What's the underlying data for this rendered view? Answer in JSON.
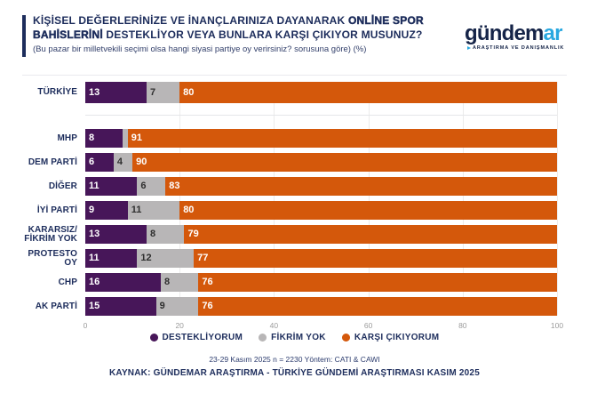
{
  "header": {
    "title_part1": "KİŞİSEL DEĞERLERİNİZE VE İNANÇLARINIZA DAYANARAK",
    "title_part2_bold": "ONLİNE SPOR BAHİSLERİNİ",
    "title_part3": "DESTEKLİYOR VEYA BUNLARA KARŞI ÇIKIYOR MUSUNUZ?",
    "subtitle": "(Bu pazar bir milletvekili seçimi olsa hangi siyasi partiye oy verirsiniz? sorusuna göre) (%)",
    "accent_color": "#1d2d5c"
  },
  "logo": {
    "text_main": "gündem",
    "text_accent": "ar",
    "tagline": "ARAŞTIRMA VE DANIŞMANLIK",
    "main_color": "#152448",
    "accent_color": "#29a8e0"
  },
  "chart_data": {
    "type": "bar",
    "orientation": "horizontal",
    "stacked": true,
    "title": "KİŞİSEL DEĞERLERİNİZE VE İNANÇLARINIZA DAYANARAK ONLİNE SPOR BAHİSLERİNİ DESTEKLİYOR VEYA BUNLARA KARŞI ÇIKIYOR MUSUNUZ?",
    "subtitle": "(Bu pazar bir milletvekili seçimi olsa hangi siyasi partiye oy verirsiniz? sorusuna göre) (%)",
    "unit": "%",
    "categories": [
      "TÜRKİYE",
      "MHP",
      "DEM PARTİ",
      "DİĞER",
      "İYİ PARTİ",
      "KARARSIZ/\nFİKRİM YOK",
      "PROTESTO OY",
      "CHP",
      "AK PARTİ"
    ],
    "series": [
      {
        "name": "DESTEKLİYORUM",
        "color": "#471659",
        "label_color": "#ffffff",
        "values": [
          13,
          8,
          6,
          11,
          9,
          13,
          11,
          16,
          15
        ]
      },
      {
        "name": "FİKRİM YOK",
        "color": "#b8b6b7",
        "label_color": "#2f2f2f",
        "values": [
          7,
          1,
          4,
          6,
          11,
          8,
          12,
          8,
          9
        ]
      },
      {
        "name": "KARŞI ÇIKIYORUM",
        "color": "#d4580b",
        "label_color": "#ffffff",
        "values": [
          80,
          91,
          90,
          83,
          80,
          79,
          77,
          76,
          76
        ]
      }
    ],
    "min_label_value": 2,
    "xlim": [
      0,
      100
    ],
    "x_ticks": [
      0,
      20,
      40,
      60,
      80,
      100
    ],
    "grid": true,
    "legend_position": "bottom",
    "highlight_row": "TÜRKİYE"
  },
  "legend": {
    "items": [
      {
        "label": "DESTEKLİYORUM",
        "color": "#471659"
      },
      {
        "label": "FİKRİM YOK",
        "color": "#b8b6b7"
      },
      {
        "label": "KARŞI ÇIKIYORUM",
        "color": "#d4580b"
      }
    ]
  },
  "footer": {
    "line1": "23-29 Kasım 2025 n = 2230 Yöntem: CATI & CAWI",
    "line2": "KAYNAK: GÜNDEMAR ARAŞTIRMA - TÜRKİYE GÜNDEMİ ARAŞTIRMASI KASIM 2025"
  }
}
